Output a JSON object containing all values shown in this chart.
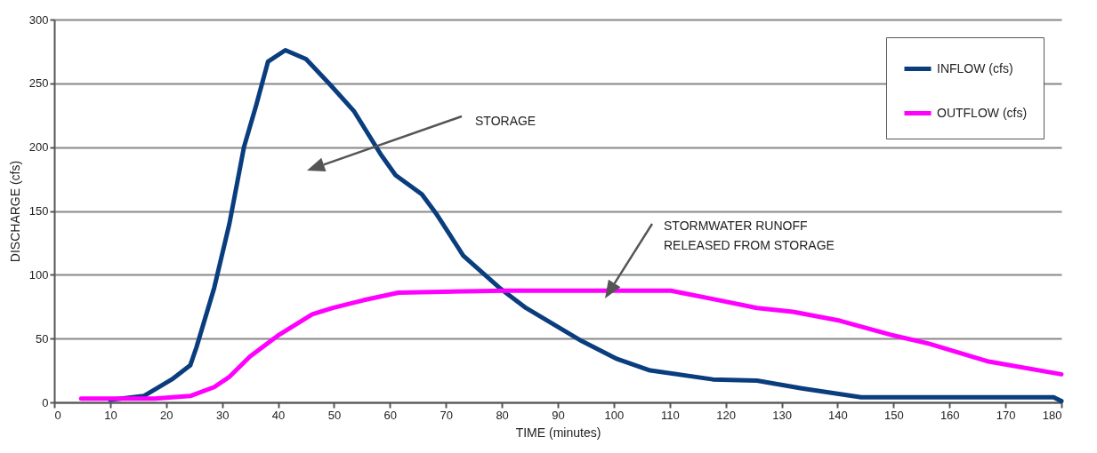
{
  "chart_data": {
    "type": "line",
    "xlabel": "TIME (minutes)",
    "ylabel": "DISCHARGE (cfs)",
    "xlim": [
      0,
      180
    ],
    "xticks": [
      0,
      10,
      20,
      30,
      40,
      50,
      60,
      70,
      80,
      90,
      100,
      110,
      120,
      130,
      140,
      150,
      160,
      170,
      180
    ],
    "ylim": [
      0,
      300
    ],
    "yticks": [
      0,
      50,
      100,
      150,
      200,
      250,
      300
    ],
    "grid": "y",
    "legend": "top right",
    "marker": "none",
    "line_style": "solid",
    "series": [
      {
        "name": "INFLOW (cfs)",
        "color": "#0a3d7e",
        "x": [
          10,
          16,
          21,
          24.3,
          25.4,
          28.6,
          31.3,
          33.9,
          36.1,
          38.2,
          41.3,
          45,
          49.3,
          53.6,
          58.4,
          61,
          65.7,
          68.4,
          73.1,
          79.5,
          84.3,
          94.3,
          100.6,
          106.5,
          117.7,
          125.6,
          133.6,
          144.2,
          178.6,
          180
        ],
        "values": [
          2,
          5,
          18,
          29,
          43,
          90,
          140,
          200,
          233,
          267,
          276,
          269,
          249,
          228,
          194,
          178,
          163,
          147,
          115,
          90,
          74,
          48,
          34,
          25,
          18,
          17,
          11,
          4,
          4,
          1
        ]
      },
      {
        "name": "OUTFLOW (cfs)",
        "color": "#ff00ff",
        "x": [
          4.8,
          18,
          24.3,
          28.6,
          31.3,
          35,
          40.2,
          46.1,
          49.8,
          55.2,
          61.5,
          80.6,
          110.2,
          117.7,
          125.6,
          132,
          140.4,
          149.5,
          156.3,
          167,
          180
        ],
        "values": [
          3,
          3,
          5,
          12,
          20,
          36,
          53,
          69,
          74,
          80,
          86,
          87.5,
          87.5,
          81,
          74,
          71,
          64,
          53,
          46,
          32,
          22
        ]
      }
    ],
    "annotations": [
      "STORAGE",
      "STORMWATER RUNOFF\nRELEASED FROM STORAGE"
    ]
  }
}
